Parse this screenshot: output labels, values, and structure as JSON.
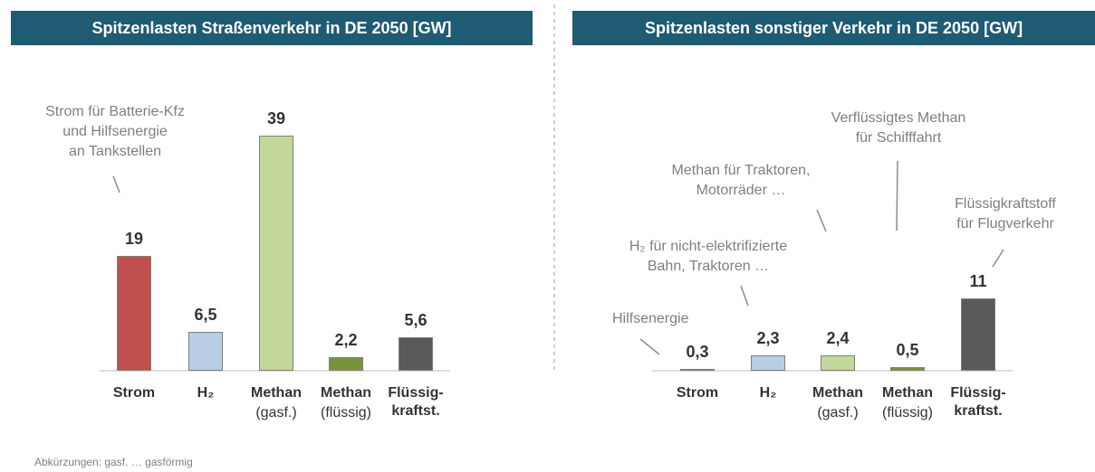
{
  "chart_data": [
    {
      "type": "bar",
      "title": "Spitzenlasten Straßenverkehr in DE 2050 [GW]",
      "categories": [
        "Strom",
        "H₂",
        "Methan",
        "Methan",
        "Flüssig-\nkraftst."
      ],
      "category_sublabels": [
        null,
        null,
        "(gasf.)",
        "(flüssig)",
        null
      ],
      "values": [
        19,
        6.5,
        39,
        2.2,
        5.6
      ],
      "value_labels": [
        "19",
        "6,5",
        "39",
        "2,2",
        "5,6"
      ],
      "colors": [
        "#c0504d",
        "#b9cde5",
        "#c4d79b",
        "#77933c",
        "#595959"
      ],
      "ylim": [
        0,
        48
      ],
      "annotations": [
        "Strom für Batterie-Kfz\nund Hilfsenergie\nan Tankstellen"
      ],
      "footnote": "Abkürzungen: gasf. … gasförmig"
    },
    {
      "type": "bar",
      "title": "Spitzenlasten sonstiger Verkehr in DE 2050 [GW]",
      "categories": [
        "Strom",
        "H₂",
        "Methan",
        "Methan",
        "Flüssig-\nkraftst."
      ],
      "category_sublabels": [
        null,
        null,
        "(gasf.)",
        "(flüssig)",
        null
      ],
      "values": [
        0.3,
        2.3,
        2.4,
        0.5,
        11
      ],
      "value_labels": [
        "0,3",
        "2,3",
        "2,4",
        "0,5",
        "11"
      ],
      "colors": [
        "#c0504d",
        "#b9cde5",
        "#c4d79b",
        "#77933c",
        "#595959"
      ],
      "ylim": [
        0,
        44
      ],
      "annotations": [
        "Hilfsenergie",
        "H₂ für nicht-elektrifizierte\nBahn, Traktoren …",
        "Methan für Traktoren,\nMotorräder …",
        "Verflüssigtes Methan\nfür Schifffahrt",
        "Flüssigkraftstoff\nfür Flugverkehr"
      ]
    }
  ]
}
